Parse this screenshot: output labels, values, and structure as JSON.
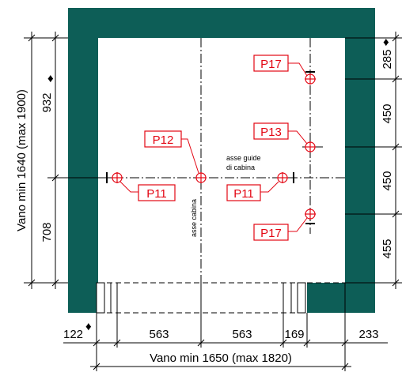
{
  "colors": {
    "wall": "#0d5e57",
    "accent": "#e30613",
    "line": "#000000",
    "background": "#ffffff"
  },
  "vertical_overall_label": "Vano min 1640 (max 1900)",
  "vertical_dims": {
    "upper": "932",
    "lower": "708"
  },
  "right_dims": {
    "d1": "285",
    "d2": "450",
    "d3": "450",
    "d4": "455"
  },
  "bottom_dims": {
    "d1": "122",
    "d2": "563",
    "d3": "563",
    "d4": "169",
    "d5": "233"
  },
  "horizontal_overall_label": "Vano min 1650 (max 1820)",
  "axis_labels": {
    "guide_axis_line1": "asse guide",
    "guide_axis_line2": "di cabina",
    "cabin_axis": "asse cabina"
  },
  "points": {
    "p17_top": "P17",
    "p12": "P12",
    "p13": "P13",
    "p11_left": "P11",
    "p11_right": "P11",
    "p17_bottom": "P17"
  },
  "diamond_symbol": "♦"
}
